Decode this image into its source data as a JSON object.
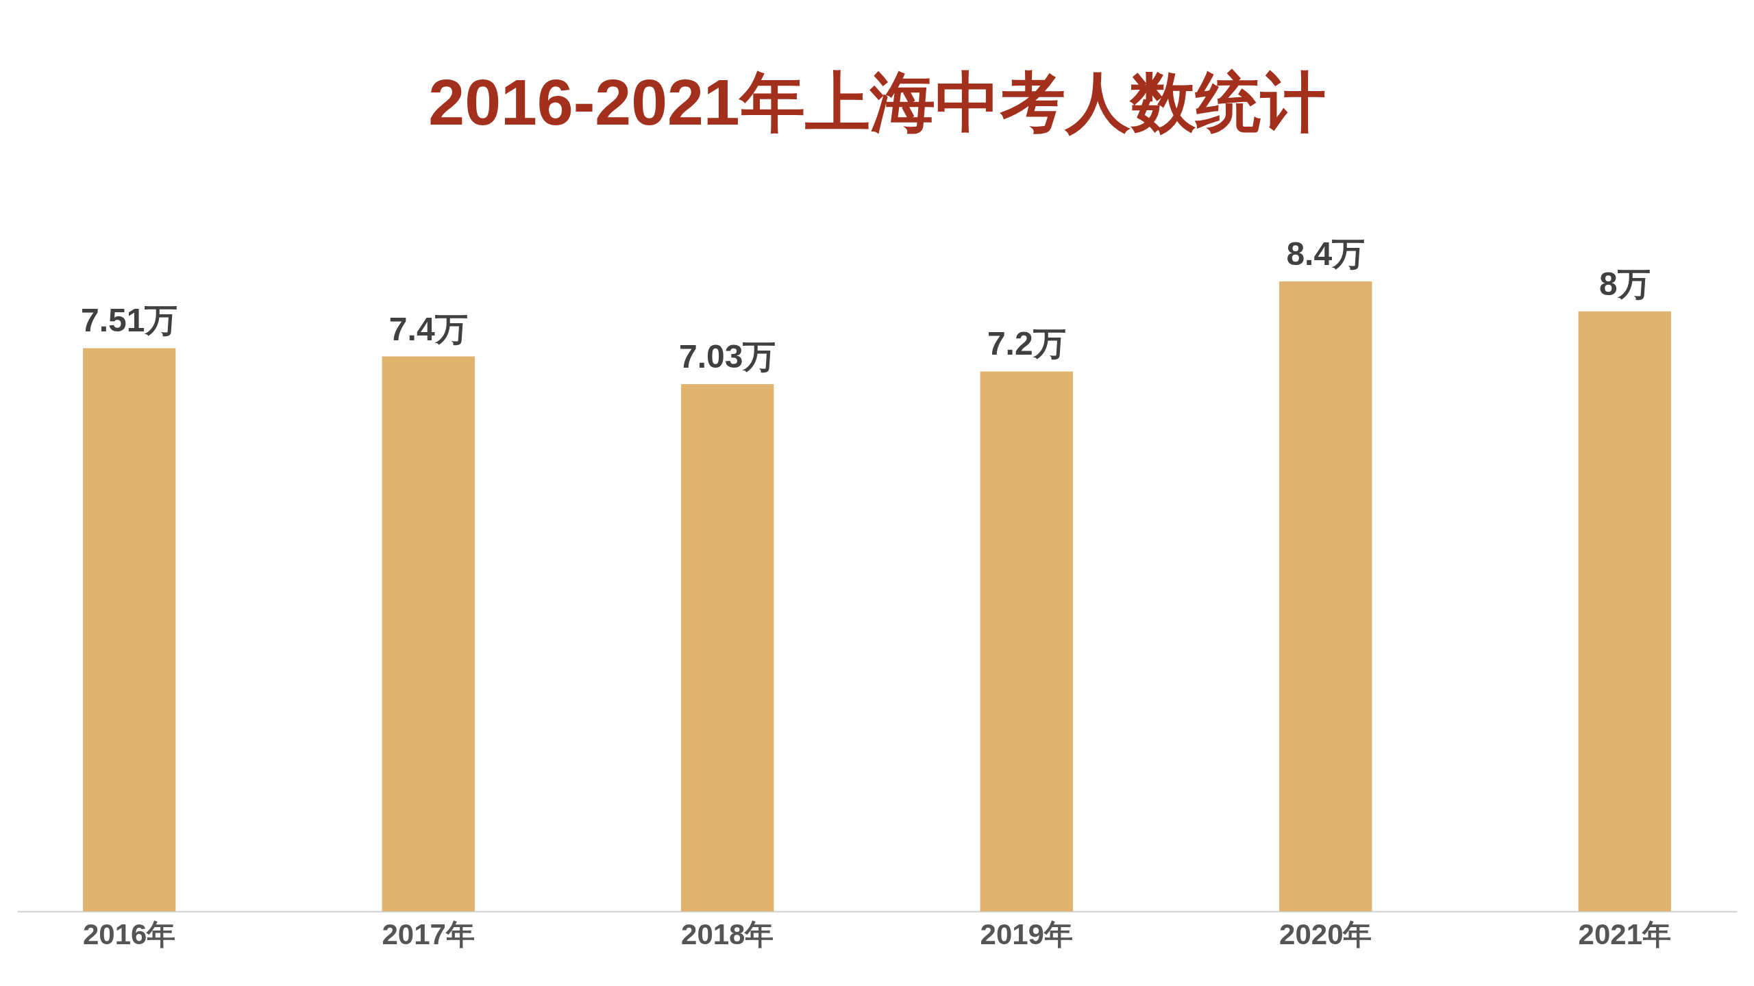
{
  "chart_data": {
    "type": "bar",
    "title": "2016-2021年上海中考人数统计",
    "categories": [
      "2016年",
      "2017年",
      "2018年",
      "2019年",
      "2020年",
      "2021年"
    ],
    "values": [
      7.51,
      7.4,
      7.03,
      7.2,
      8.4,
      8
    ],
    "value_labels": [
      "7.51万",
      "7.4万",
      "7.03万",
      "7.2万",
      "8.4万",
      "8万"
    ],
    "color": "#e0b46f",
    "tick_labels": "x"
  }
}
